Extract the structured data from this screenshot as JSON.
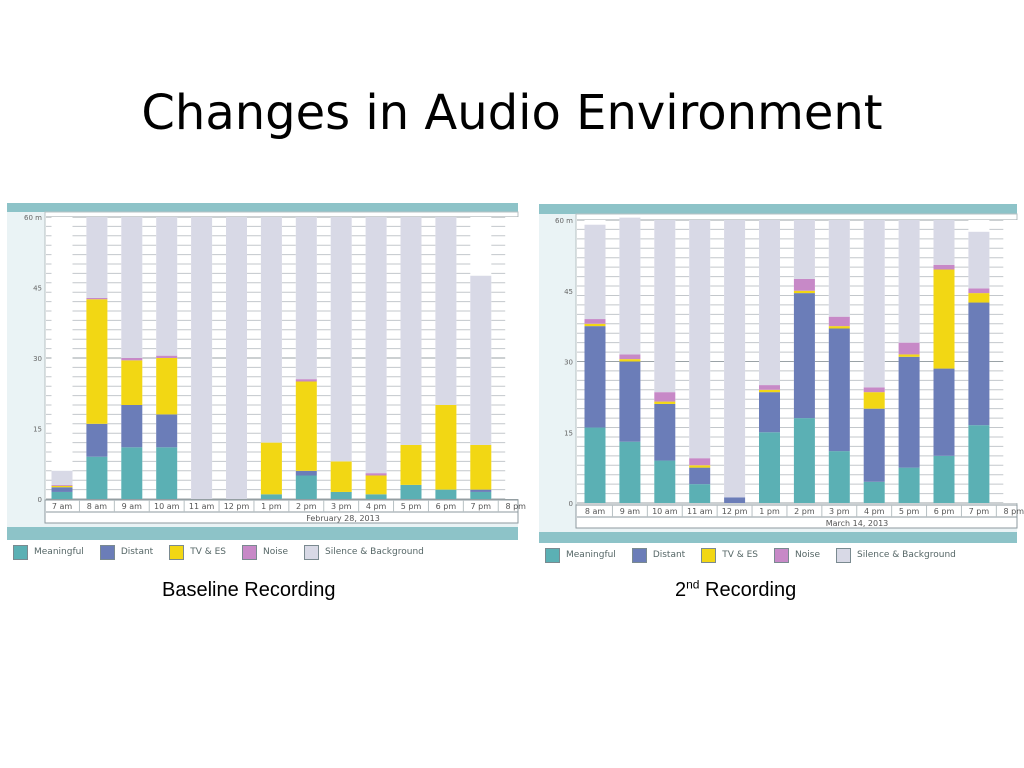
{
  "title": "Changes in Audio Environment",
  "legend": [
    {
      "label": "Meaningful",
      "color": "#5bb0b4"
    },
    {
      "label": "Distant",
      "color": "#6b7db8"
    },
    {
      "label": "TV & ES",
      "color": "#f2d714"
    },
    {
      "label": "Noise",
      "color": "#c789c7"
    },
    {
      "label": "Silence & Background",
      "color": "#d8d9e6"
    }
  ],
  "captions": {
    "baseline": "Baseline Recording",
    "second_prefix": "2",
    "second_sup": "nd",
    "second_suffix": " Recording"
  },
  "chart_data": [
    {
      "type": "bar",
      "stacked": true,
      "date_label": "February 28, 2013",
      "ylim": [
        0,
        60
      ],
      "yticks": [
        "0",
        "15",
        "30",
        "45",
        "60 m"
      ],
      "grid": true,
      "legend_position": "bottom",
      "categories": [
        "7 am",
        "8 am",
        "9 am",
        "10 am",
        "11 am",
        "12 pm",
        "1 pm",
        "2 pm",
        "3 pm",
        "4 pm",
        "5 pm",
        "6 pm",
        "7 pm",
        "8 pm"
      ],
      "series": [
        {
          "name": "Meaningful",
          "values": [
            1.5,
            9,
            11,
            11,
            0,
            0,
            1,
            5,
            1.5,
            1,
            3,
            2,
            1.5,
            0
          ]
        },
        {
          "name": "Distant",
          "values": [
            1,
            7,
            9,
            7,
            0,
            0,
            0,
            1,
            0,
            0,
            0,
            0,
            0.5,
            0
          ]
        },
        {
          "name": "TV & ES",
          "values": [
            0.3,
            26.5,
            9.5,
            12,
            0,
            0,
            11,
            19,
            6.5,
            4,
            8.5,
            18,
            9.5,
            0
          ]
        },
        {
          "name": "Noise",
          "values": [
            0.2,
            0.3,
            0.5,
            0.5,
            0,
            0,
            0,
            0.5,
            0,
            0.5,
            0,
            0,
            0,
            0
          ]
        },
        {
          "name": "Silence & Background",
          "values": [
            3,
            17.2,
            30,
            29.5,
            60,
            60,
            48,
            34.5,
            52,
            54.5,
            48.5,
            40,
            36,
            0
          ]
        }
      ]
    },
    {
      "type": "bar",
      "stacked": true,
      "date_label": "March 14, 2013",
      "ylim": [
        0,
        60
      ],
      "yticks": [
        "0",
        "15",
        "30",
        "45",
        "60 m"
      ],
      "grid": true,
      "legend_position": "bottom",
      "categories": [
        "8 am",
        "9 am",
        "10 am",
        "11 am",
        "12 pm",
        "1 pm",
        "2 pm",
        "3 pm",
        "4 pm",
        "5 pm",
        "6 pm",
        "7 pm",
        "8 pm"
      ],
      "series": [
        {
          "name": "Meaningful",
          "values": [
            16,
            13,
            9,
            4,
            0,
            15,
            18,
            11,
            4.5,
            7.5,
            10,
            16.5,
            0
          ]
        },
        {
          "name": "Distant",
          "values": [
            21.5,
            17,
            12,
            3.5,
            1.2,
            8.5,
            26.5,
            26,
            15.5,
            23.5,
            18.5,
            26,
            0
          ]
        },
        {
          "name": "TV & ES",
          "values": [
            0.5,
            0.5,
            0.5,
            0.5,
            0,
            0.5,
            0.5,
            0.5,
            3.5,
            0.5,
            21,
            2,
            0
          ]
        },
        {
          "name": "Noise",
          "values": [
            1,
            1,
            2,
            1.5,
            0,
            1,
            2.5,
            2,
            1,
            2.5,
            1,
            1,
            0
          ]
        },
        {
          "name": "Silence & Background",
          "values": [
            20,
            29,
            36.5,
            50.5,
            58.8,
            35,
            12.5,
            20.5,
            35.5,
            26,
            9.5,
            12,
            0
          ]
        }
      ]
    }
  ]
}
